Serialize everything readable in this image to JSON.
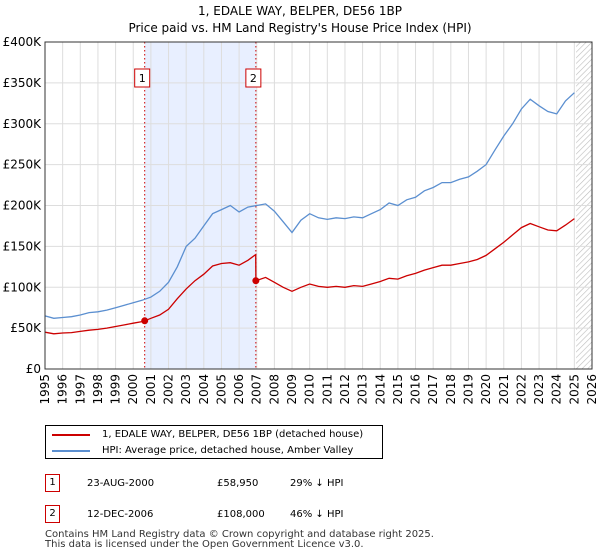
{
  "colors": {
    "property": "#cc0000",
    "hpi": "#5b8fd0",
    "shade": "#e8efff",
    "grid": "#dddddd",
    "forecast_hatch": "#bbbbbb"
  },
  "title_line1": "1, EDALE WAY, BELPER, DE56 1BP",
  "title_line2": "Price paid vs. HM Land Registry's House Price Index (HPI)",
  "chart_data": {
    "type": "line",
    "title": "1, EDALE WAY, BELPER, DE56 1BP — Price paid vs. HM Land Registry's House Price Index (HPI)",
    "xlabel": "",
    "ylabel": "",
    "xlim": [
      1995,
      2026
    ],
    "ylim": [
      0,
      400000
    ],
    "x_ticks": [
      1995,
      1996,
      1997,
      1998,
      1999,
      2000,
      2001,
      2002,
      2003,
      2004,
      2005,
      2006,
      2007,
      2008,
      2009,
      2010,
      2011,
      2012,
      2013,
      2014,
      2015,
      2016,
      2017,
      2018,
      2019,
      2020,
      2021,
      2022,
      2023,
      2024,
      2025,
      2026
    ],
    "y_ticks": [
      {
        "value": 0,
        "label": "£0"
      },
      {
        "value": 50000,
        "label": "£50K"
      },
      {
        "value": 100000,
        "label": "£100K"
      },
      {
        "value": 150000,
        "label": "£150K"
      },
      {
        "value": 200000,
        "label": "£200K"
      },
      {
        "value": 250000,
        "label": "£250K"
      },
      {
        "value": 300000,
        "label": "£300K"
      },
      {
        "value": 350000,
        "label": "£350K"
      },
      {
        "value": 400000,
        "label": "£400K"
      }
    ],
    "grid": true,
    "shaded_period": [
      2000.65,
      2006.95
    ],
    "forecast_from": 2025.1,
    "series": [
      {
        "name": "HPI: Average price, detached house, Amber Valley",
        "x": [
          1995,
          1995.5,
          1996,
          1996.5,
          1997,
          1997.5,
          1998,
          1998.5,
          1999,
          1999.5,
          2000,
          2000.5,
          2001,
          2001.5,
          2002,
          2002.5,
          2003,
          2003.5,
          2004,
          2004.5,
          2005,
          2005.5,
          2006,
          2006.5,
          2007,
          2007.5,
          2008,
          2008.5,
          2009,
          2009.5,
          2010,
          2010.5,
          2011,
          2011.5,
          2012,
          2012.5,
          2013,
          2013.5,
          2014,
          2014.5,
          2015,
          2015.5,
          2016,
          2016.5,
          2017,
          2017.5,
          2018,
          2018.5,
          2019,
          2019.5,
          2020,
          2020.5,
          2021,
          2021.5,
          2022,
          2022.5,
          2023,
          2023.5,
          2024,
          2024.5,
          2025
        ],
        "values": [
          65000,
          62000,
          63000,
          64000,
          66000,
          69000,
          70000,
          72000,
          75000,
          78000,
          81000,
          84000,
          88000,
          95000,
          106000,
          125000,
          150000,
          160000,
          175000,
          190000,
          195000,
          200000,
          192000,
          198000,
          200000,
          202000,
          193000,
          180000,
          167000,
          182000,
          190000,
          185000,
          183000,
          185000,
          184000,
          186000,
          185000,
          190000,
          195000,
          203000,
          200000,
          207000,
          210000,
          218000,
          222000,
          228000,
          228000,
          232000,
          235000,
          242000,
          250000,
          268000,
          285000,
          300000,
          318000,
          330000,
          322000,
          315000,
          312000,
          328000,
          338000
        ]
      },
      {
        "name": "1, EDALE WAY, BELPER, DE56 1BP (detached house)",
        "x": [
          1995,
          1995.5,
          1996,
          1996.5,
          1997,
          1997.5,
          1998,
          1998.5,
          1999,
          1999.5,
          2000,
          2000.5,
          2000.65,
          2001,
          2001.5,
          2002,
          2002.5,
          2003,
          2003.5,
          2004,
          2004.5,
          2005,
          2005.5,
          2006,
          2006.5,
          2006.94,
          2006.95,
          2007.5,
          2008,
          2008.5,
          2009,
          2009.5,
          2010,
          2010.5,
          2011,
          2011.5,
          2012,
          2012.5,
          2013,
          2013.5,
          2014,
          2014.5,
          2015,
          2015.5,
          2016,
          2016.5,
          2017,
          2017.5,
          2018,
          2018.5,
          2019,
          2019.5,
          2020,
          2020.5,
          2021,
          2021.5,
          2022,
          2022.5,
          2023,
          2023.5,
          2024,
          2024.5,
          2025
        ],
        "values": [
          45000,
          43000,
          44000,
          44500,
          46000,
          47500,
          48500,
          50000,
          52000,
          54000,
          56000,
          58000,
          58950,
          62000,
          66000,
          73000,
          86000,
          98000,
          108000,
          116000,
          126000,
          129000,
          130000,
          127000,
          133000,
          140000,
          108000,
          112000,
          106000,
          100000,
          95000,
          100000,
          104000,
          101000,
          100000,
          101000,
          100000,
          102000,
          101000,
          104000,
          107000,
          111000,
          110000,
          114000,
          117000,
          121000,
          124000,
          127000,
          127000,
          129000,
          131000,
          134000,
          139000,
          147000,
          155000,
          164000,
          173000,
          178000,
          174000,
          170000,
          169000,
          176000,
          184000
        ]
      }
    ],
    "points": [
      {
        "label": "1",
        "x": 2000.65,
        "value": 58950
      },
      {
        "label": "2",
        "x": 2006.95,
        "value": 108000
      }
    ]
  },
  "legend": {
    "property_label": "1, EDALE WAY, BELPER, DE56 1BP (detached house)",
    "hpi_label": "HPI: Average price, detached house, Amber Valley"
  },
  "transactions": [
    {
      "num": "1",
      "date": "23-AUG-2000",
      "price": "£58,950",
      "hpi": "29% ↓ HPI"
    },
    {
      "num": "2",
      "date": "12-DEC-2006",
      "price": "£108,000",
      "hpi": "46% ↓ HPI"
    }
  ],
  "footer_line1": "Contains HM Land Registry data © Crown copyright and database right 2025.",
  "footer_line2": "This data is licensed under the Open Government Licence v3.0."
}
